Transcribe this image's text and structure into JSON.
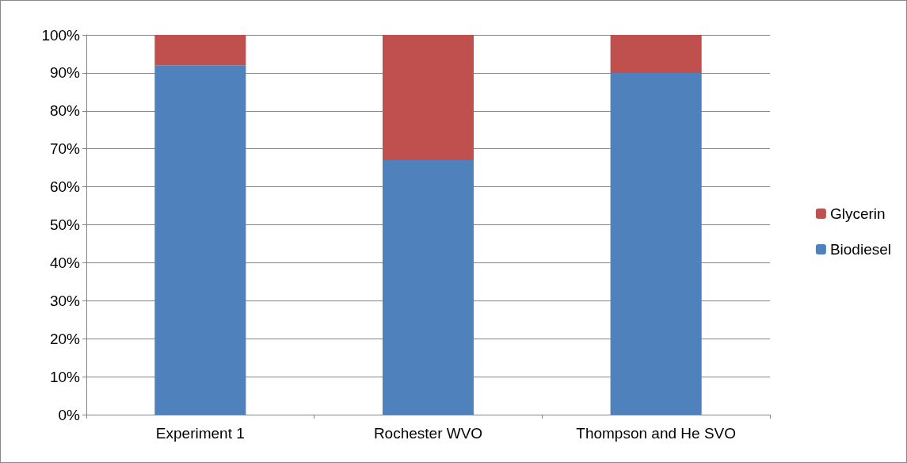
{
  "chart_data": {
    "type": "bar",
    "stacked": true,
    "categories": [
      "Experiment 1",
      "Rochester WVO",
      "Thompson and He SVO"
    ],
    "series": [
      {
        "name": "Biodiesel",
        "color": "#4f81bd",
        "values": [
          92,
          67,
          90
        ]
      },
      {
        "name": "Glycerin",
        "color": "#c0504d",
        "values": [
          8,
          33,
          10
        ]
      }
    ],
    "ylim": [
      0,
      100
    ],
    "yticks": [
      {
        "value": 0,
        "label": "0%"
      },
      {
        "value": 10,
        "label": "10%"
      },
      {
        "value": 20,
        "label": "20%"
      },
      {
        "value": 30,
        "label": "30%"
      },
      {
        "value": 40,
        "label": "40%"
      },
      {
        "value": 50,
        "label": "50%"
      },
      {
        "value": 60,
        "label": "60%"
      },
      {
        "value": 70,
        "label": "70%"
      },
      {
        "value": 80,
        "label": "80%"
      },
      {
        "value": 90,
        "label": "90%"
      },
      {
        "value": 100,
        "label": "100%"
      }
    ],
    "grid": "y",
    "legend": "right"
  }
}
